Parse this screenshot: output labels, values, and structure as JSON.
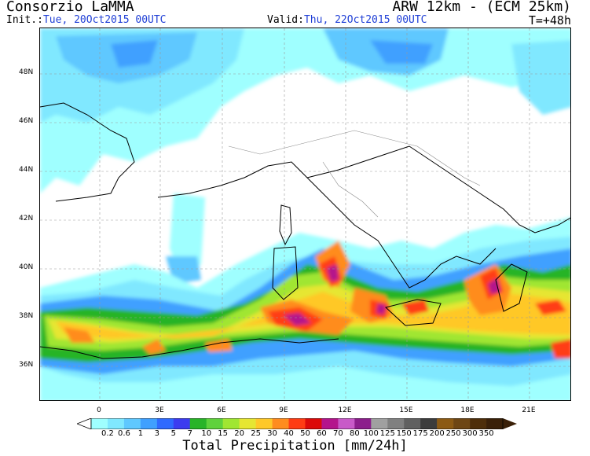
{
  "header": {
    "title_left": "Consorzio LaMMA",
    "title_right": "ARW 12km - (ECM 25km)",
    "init_label": "Init.:",
    "init_value": "Tue, 20Oct2015 00UTC",
    "valid_label": "Valid:",
    "valid_value": "Thu, 22Oct2015 00UTC",
    "step": "T=+48h"
  },
  "axes": {
    "lat_labels": [
      "48N",
      "46N",
      "44N",
      "42N",
      "40N",
      "38N",
      "36N"
    ],
    "lon_labels": [
      "0",
      "3E",
      "6E",
      "9E",
      "12E",
      "15E",
      "18E",
      "21E"
    ]
  },
  "colorbar": {
    "title": "Total Precipitation [mm/24h]",
    "labels": [
      "0.2",
      "0.6",
      "1",
      "3",
      "5",
      "7",
      "10",
      "15",
      "20",
      "25",
      "30",
      "40",
      "50",
      "60",
      "70",
      "80",
      "100",
      "125",
      "150",
      "175",
      "200",
      "250",
      "300",
      "350"
    ],
    "colors": [
      "#9fffff",
      "#80e8ff",
      "#5fc8ff",
      "#3fa0ff",
      "#2f6aff",
      "#3c3cf0",
      "#28b428",
      "#5fd23c",
      "#a0e632",
      "#e6e632",
      "#ffc828",
      "#ff8c1e",
      "#ff3c14",
      "#dc0a0a",
      "#b4148c",
      "#c85ac8",
      "#8c1e8c",
      "#a0a0a0",
      "#808080",
      "#606060",
      "#3c3c3c",
      "#8c5a14",
      "#6e4614",
      "#4e2e0a",
      "#3a2008"
    ]
  }
}
